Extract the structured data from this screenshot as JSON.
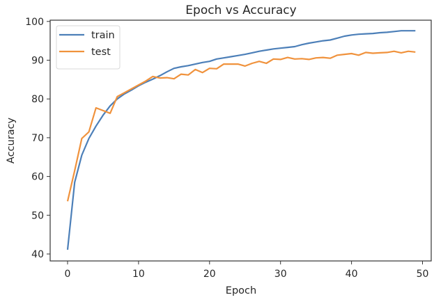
{
  "chart_data": {
    "type": "line",
    "title": "Epoch vs Accuracy",
    "xlabel": "Epoch",
    "ylabel": "Accuracy",
    "xlim": [
      -2.5,
      51.5
    ],
    "ylim": [
      38.3,
      100.4
    ],
    "xticks": [
      0,
      10,
      20,
      30,
      40,
      50
    ],
    "yticks": [
      40,
      50,
      60,
      70,
      80,
      90,
      100
    ],
    "grid": false,
    "legend_position": "upper left",
    "x": [
      0,
      1,
      2,
      3,
      4,
      5,
      6,
      7,
      8,
      9,
      10,
      11,
      12,
      13,
      14,
      15,
      16,
      17,
      18,
      19,
      20,
      21,
      22,
      23,
      24,
      25,
      26,
      27,
      28,
      29,
      30,
      31,
      32,
      33,
      34,
      35,
      36,
      37,
      38,
      39,
      40,
      41,
      42,
      43,
      44,
      45,
      46,
      47,
      48,
      49
    ],
    "series": [
      {
        "name": "train",
        "color": "#4c7fb8",
        "values": [
          41.1,
          58.5,
          65.5,
          69.8,
          73.0,
          75.8,
          78.2,
          80.0,
          81.3,
          82.3,
          83.4,
          84.3,
          85.1,
          86.0,
          87.0,
          87.9,
          88.3,
          88.6,
          89.0,
          89.4,
          89.7,
          90.3,
          90.6,
          90.9,
          91.2,
          91.5,
          91.9,
          92.3,
          92.6,
          92.9,
          93.1,
          93.3,
          93.5,
          94.0,
          94.4,
          94.7,
          95.0,
          95.2,
          95.7,
          96.2,
          96.5,
          96.7,
          96.8,
          96.9,
          97.1,
          97.2,
          97.4,
          97.6,
          97.6,
          97.6
        ]
      },
      {
        "name": "test",
        "color": "#f0923c",
        "values": [
          53.6,
          61.5,
          69.8,
          71.5,
          77.7,
          77.0,
          76.3,
          80.6,
          81.6,
          82.6,
          83.6,
          84.6,
          85.8,
          85.4,
          85.5,
          85.2,
          86.4,
          86.2,
          87.6,
          86.8,
          87.9,
          87.8,
          89.0,
          89.0,
          89.0,
          88.5,
          89.2,
          89.7,
          89.2,
          90.3,
          90.2,
          90.7,
          90.3,
          90.4,
          90.2,
          90.6,
          90.7,
          90.5,
          91.3,
          91.5,
          91.7,
          91.3,
          92.0,
          91.8,
          91.9,
          92.0,
          92.3,
          91.9,
          92.3,
          92.1
        ]
      }
    ]
  },
  "legend": {
    "items": [
      {
        "label": "train",
        "color": "#4c7fb8"
      },
      {
        "label": "test",
        "color": "#f0923c"
      }
    ]
  }
}
